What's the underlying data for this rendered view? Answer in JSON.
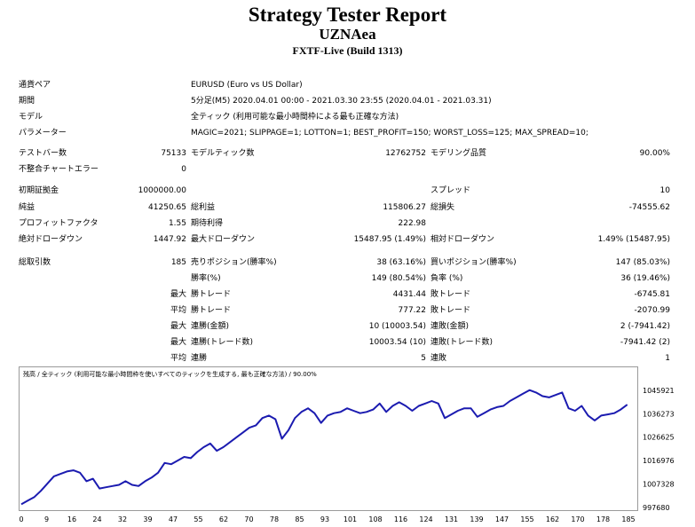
{
  "header": {
    "title": "Strategy Tester Report",
    "ea_name": "UZNAea",
    "server": "FXTF-Live (Build 1313)"
  },
  "info": {
    "pair_label": "通貨ペア",
    "pair_value": "EURUSD (Euro vs US Dollar)",
    "period_label": "期間",
    "period_value": "5分足(M5) 2020.04.01 00:00 - 2021.03.30 23:55 (2020.04.01 - 2021.03.31)",
    "model_label": "モデル",
    "model_value": "全ティック (利用可能な最小時間枠による最も正確な方法)",
    "params_label": "パラメーター",
    "params_value": "MAGIC=2021; SLIPPAGE=1; LOTTON=1; BEST_PROFIT=150; WORST_LOSS=125; MAX_SPREAD=10;"
  },
  "stats": {
    "test_bars_label": "テストバー数",
    "test_bars": "75133",
    "model_ticks_label": "モデルティック数",
    "model_ticks": "12762752",
    "model_quality_label": "モデリング品質",
    "model_quality": "90.00%",
    "mismatch_label": "不整合チャートエラー",
    "mismatch": "0",
    "deposit_label": "初期証拠金",
    "deposit": "1000000.00",
    "spread_label": "スプレッド",
    "spread": "10",
    "net_profit_label": "純益",
    "net_profit": "41250.65",
    "gross_profit_label": "総利益",
    "gross_profit": "115806.27",
    "gross_loss_label": "総損失",
    "gross_loss": "-74555.62",
    "profit_factor_label": "プロフィットファクタ",
    "profit_factor": "1.55",
    "expected_payoff_label": "期待利得",
    "expected_payoff": "222.98",
    "abs_dd_label": "絶対ドローダウン",
    "abs_dd": "1447.92",
    "max_dd_label": "最大ドローダウン",
    "max_dd": "15487.95 (1.49%)",
    "rel_dd_label": "相対ドローダウン",
    "rel_dd": "1.49% (15487.95)",
    "total_trades_label": "総取引数",
    "total_trades": "185",
    "short_label": "売りポジション(勝率%)",
    "short": "38 (63.16%)",
    "long_label": "買いポジション(勝率%)",
    "long": "147 (85.03%)",
    "win_label": "勝率(%)",
    "win": "149 (80.54%)",
    "loss_label": "負率 (%)",
    "loss": "36 (19.46%)",
    "max_label": "最大",
    "avg_label": "平均",
    "max_win_trade_label": "勝トレード",
    "max_win_trade": "4431.44",
    "max_loss_trade_label": "敗トレード",
    "max_loss_trade": "-6745.81",
    "avg_win_trade_label": "勝トレード",
    "avg_win_trade": "777.22",
    "avg_loss_trade_label": "敗トレード",
    "avg_loss_trade": "-2070.99",
    "max_cons_wins_label": "連勝(金額)",
    "max_cons_wins": "10 (10003.54)",
    "max_cons_losses_label": "連敗(金額)",
    "max_cons_losses": "2 (-7941.42)",
    "max_cons_profit_label": "連勝(トレード数)",
    "max_cons_profit": "10003.54 (10)",
    "max_cons_loss_label": "連敗(トレード数)",
    "max_cons_loss": "-7941.42 (2)",
    "avg_cons_wins_label": "連勝",
    "avg_cons_wins": "5",
    "avg_cons_losses_label": "連敗",
    "avg_cons_losses": "1"
  },
  "chart_data": {
    "type": "line",
    "caption": "残高 / 全ティック (利用可能な最小時間枠を使いすべてのティックを生成する, 最も正確な方法) / 90.00%",
    "line_color": "#1b1bb0",
    "xlim": [
      0,
      188
    ],
    "ylim": [
      997680,
      1051000
    ],
    "x_ticks": [
      "0",
      "9",
      "16",
      "24",
      "32",
      "39",
      "47",
      "55",
      "62",
      "70",
      "78",
      "85",
      "93",
      "101",
      "108",
      "116",
      "124",
      "131",
      "139",
      "147",
      "155",
      "162",
      "170",
      "178",
      "185"
    ],
    "y_ticks": [
      "1045921",
      "1036273",
      "1026625",
      "1016976",
      "1007328",
      "997680"
    ],
    "x": [
      0,
      2,
      4,
      6,
      8,
      10,
      12,
      14,
      16,
      18,
      20,
      22,
      24,
      26,
      28,
      30,
      32,
      34,
      36,
      38,
      40,
      42,
      44,
      46,
      48,
      50,
      52,
      54,
      56,
      58,
      60,
      62,
      64,
      66,
      68,
      70,
      72,
      74,
      76,
      78,
      80,
      82,
      84,
      86,
      88,
      90,
      92,
      94,
      96,
      98,
      100,
      102,
      104,
      106,
      108,
      110,
      112,
      114,
      116,
      118,
      120,
      122,
      124,
      126,
      128,
      130,
      132,
      134,
      136,
      138,
      140,
      142,
      144,
      146,
      148,
      150,
      152,
      154,
      156,
      158,
      160,
      162,
      164,
      166,
      168,
      170,
      172,
      174,
      176,
      178,
      180,
      182,
      184,
      186
    ],
    "y": [
      999000,
      1000500,
      1002000,
      1004500,
      1007500,
      1010500,
      1011500,
      1012500,
      1013000,
      1012000,
      1008500,
      1009500,
      1005500,
      1006000,
      1006500,
      1007000,
      1008500,
      1007000,
      1006500,
      1008500,
      1010000,
      1012000,
      1016000,
      1015500,
      1017000,
      1018500,
      1018000,
      1020500,
      1022500,
      1024000,
      1021000,
      1022500,
      1024500,
      1026500,
      1028500,
      1030500,
      1031500,
      1034500,
      1035500,
      1034000,
      1026000,
      1029500,
      1034500,
      1037000,
      1038500,
      1036500,
      1032500,
      1035500,
      1036500,
      1037000,
      1038500,
      1037500,
      1036500,
      1037000,
      1038000,
      1040500,
      1037000,
      1039500,
      1041000,
      1039500,
      1037500,
      1039500,
      1040500,
      1041500,
      1040500,
      1034500,
      1036000,
      1037500,
      1038500,
      1038500,
      1035000,
      1036500,
      1038000,
      1039000,
      1039500,
      1041500,
      1043000,
      1044500,
      1046000,
      1045000,
      1043500,
      1043000,
      1044000,
      1045000,
      1038500,
      1037500,
      1039500,
      1035500,
      1033500,
      1035500,
      1036000,
      1036500,
      1038000,
      1040000
    ]
  }
}
